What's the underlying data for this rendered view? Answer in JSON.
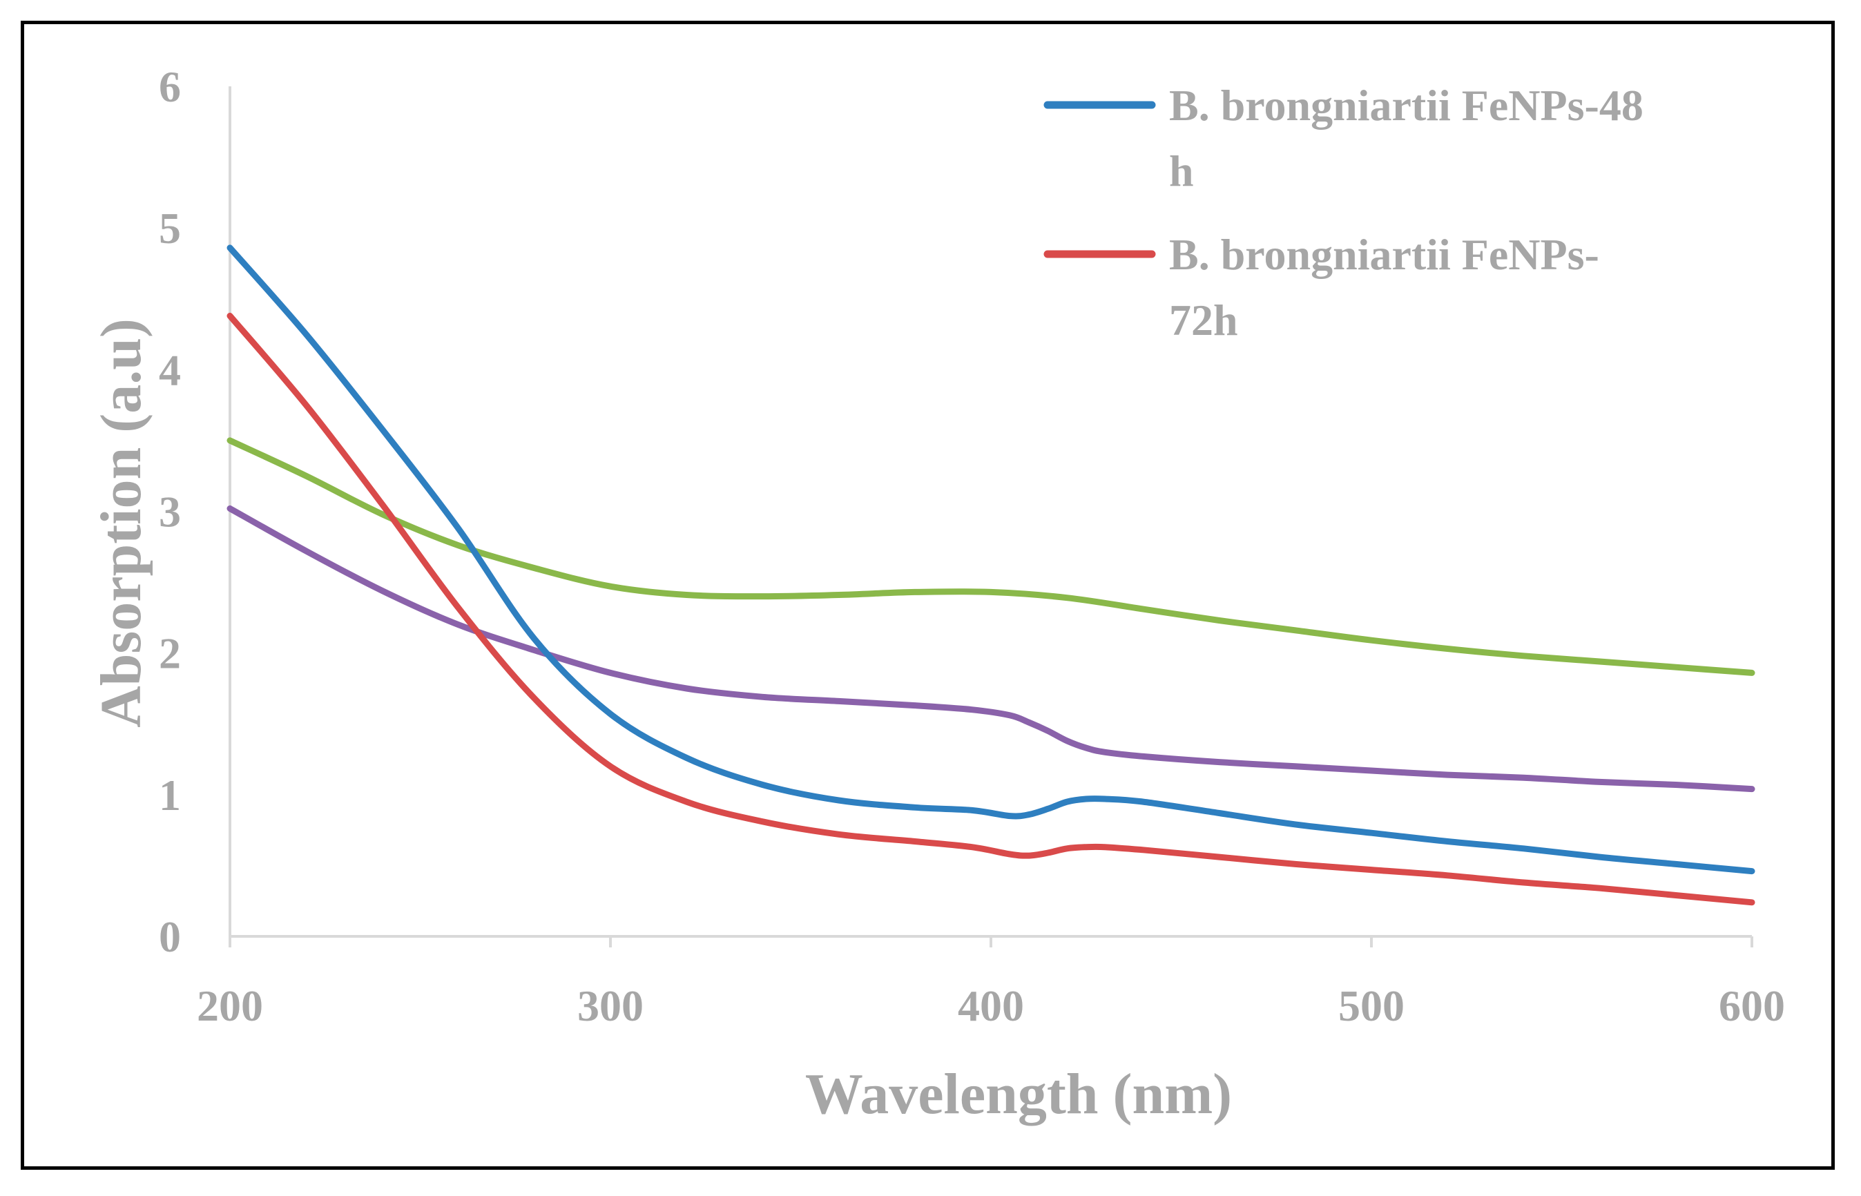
{
  "chart_data": {
    "type": "line",
    "xlabel": "Wavelength (nm)",
    "ylabel": "Absorption (a.u)",
    "xlim": [
      200,
      600
    ],
    "ylim": [
      0,
      6
    ],
    "xticks": [
      "200",
      "300",
      "400",
      "500",
      "600"
    ],
    "yticks": [
      "0",
      "1",
      "2",
      "3",
      "4",
      "5",
      "6"
    ],
    "grid": false,
    "legend_position": "top-right",
    "series": [
      {
        "name": "B. brongniartii FeNPs-48 h",
        "legend_lines": [
          "B. brongniartii FeNPs-48",
          "h"
        ],
        "color": "#2e7fc0",
        "x": [
          200,
          220,
          240,
          260,
          280,
          300,
          320,
          340,
          360,
          380,
          395,
          405,
          410,
          415,
          420,
          425,
          430,
          440,
          460,
          480,
          500,
          520,
          540,
          560,
          580,
          600
        ],
        "y": [
          4.86,
          4.25,
          3.58,
          2.88,
          2.1,
          1.57,
          1.26,
          1.07,
          0.96,
          0.91,
          0.89,
          0.85,
          0.86,
          0.9,
          0.95,
          0.97,
          0.97,
          0.95,
          0.87,
          0.79,
          0.73,
          0.67,
          0.62,
          0.56,
          0.51,
          0.46
        ]
      },
      {
        "name": "B. brongniartii FeNPs-72h",
        "legend_lines": [
          "B. brongniartii FeNPs-",
          "72h"
        ],
        "color": "#d94a4a",
        "x": [
          200,
          220,
          240,
          260,
          280,
          300,
          320,
          340,
          360,
          380,
          395,
          405,
          410,
          415,
          420,
          425,
          430,
          440,
          460,
          480,
          500,
          520,
          540,
          560,
          580,
          600
        ],
        "y": [
          4.38,
          3.75,
          3.05,
          2.32,
          1.68,
          1.2,
          0.95,
          0.81,
          0.72,
          0.67,
          0.63,
          0.58,
          0.57,
          0.59,
          0.62,
          0.63,
          0.63,
          0.61,
          0.56,
          0.51,
          0.47,
          0.43,
          0.38,
          0.34,
          0.29,
          0.24
        ]
      },
      {
        "name": "",
        "color": "#8ab84a",
        "x": [
          200,
          220,
          240,
          260,
          280,
          300,
          320,
          340,
          360,
          380,
          400,
          420,
          440,
          460,
          480,
          500,
          520,
          540,
          560,
          580,
          600
        ],
        "y": [
          3.5,
          3.25,
          2.98,
          2.76,
          2.6,
          2.47,
          2.41,
          2.4,
          2.41,
          2.43,
          2.43,
          2.39,
          2.31,
          2.23,
          2.16,
          2.09,
          2.03,
          1.98,
          1.94,
          1.9,
          1.86
        ]
      },
      {
        "name": "",
        "color": "#8a62aa",
        "x": [
          200,
          220,
          240,
          260,
          280,
          300,
          320,
          340,
          360,
          380,
          395,
          405,
          410,
          415,
          420,
          425,
          430,
          440,
          460,
          480,
          500,
          520,
          540,
          560,
          580,
          600
        ],
        "y": [
          3.02,
          2.72,
          2.44,
          2.2,
          2.02,
          1.86,
          1.75,
          1.69,
          1.66,
          1.63,
          1.6,
          1.56,
          1.51,
          1.45,
          1.38,
          1.33,
          1.3,
          1.27,
          1.23,
          1.2,
          1.17,
          1.14,
          1.12,
          1.09,
          1.07,
          1.04
        ]
      }
    ]
  }
}
